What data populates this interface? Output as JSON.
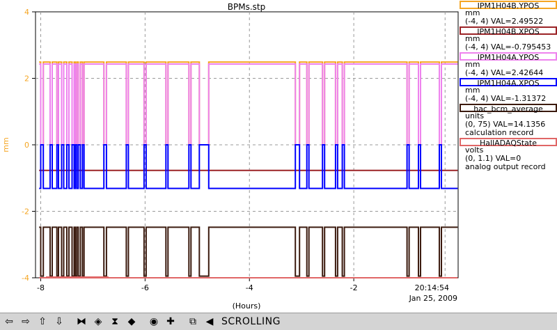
{
  "title": "BPMs.stp",
  "ylabel": "mm",
  "xlabel": "(Hours)",
  "time_label": "20:14:54",
  "date_label": "Jan 25, 2009",
  "status": "SCROLLING",
  "chart_data": {
    "type": "line",
    "title": "BPMs.stp",
    "xlabel": "(Hours)",
    "ylabel": "mm",
    "xlim": [
      -8.1,
      0
    ],
    "ylim": [
      -4,
      4
    ],
    "xticks": [
      -8,
      -6,
      -4,
      -2
    ],
    "yticks": [
      4,
      2,
      0,
      -2,
      -4
    ],
    "grid": true,
    "legend_position": "right",
    "beam_off_intervals": [
      [
        -8.0,
        -7.95
      ],
      [
        -7.82,
        -7.78
      ],
      [
        -7.69,
        -7.66
      ],
      [
        -7.6,
        -7.56
      ],
      [
        -7.5,
        -7.46
      ],
      [
        -7.4,
        -7.36
      ],
      [
        -7.34,
        -7.31
      ],
      [
        -7.28,
        -7.24
      ],
      [
        -7.2,
        -7.17
      ],
      [
        -6.79,
        -6.74
      ],
      [
        -6.36,
        -6.32
      ],
      [
        -6.02,
        -5.98
      ],
      [
        -5.6,
        -5.56
      ],
      [
        -5.16,
        -5.12
      ],
      [
        -4.96,
        -4.78
      ],
      [
        -2.22,
        -2.18
      ],
      [
        -3.12,
        -3.04
      ],
      [
        -2.9,
        -2.86
      ],
      [
        -2.6,
        -2.56
      ],
      [
        -2.35,
        -2.31
      ],
      [
        -0.98,
        -0.94
      ],
      [
        -0.76,
        -0.72
      ],
      [
        -0.36,
        -0.32
      ]
    ],
    "series": [
      {
        "name": "IPM1H04B.YPOS",
        "unit": "mm",
        "range": "(-4, 4)",
        "value": "2.49522",
        "color": "#f5a623",
        "beam_on_level": 2.49,
        "beam_off_level": 0.0
      },
      {
        "name": "IPM1H04B.XPOS",
        "unit": "mm",
        "range": "(-4, 4)",
        "value": "-0.795453",
        "color": "#9b2226",
        "beam_on_level": -0.77,
        "beam_off_level": -0.77
      },
      {
        "name": "IPM1H04A.YPOS",
        "unit": "mm",
        "range": "(-4, 4)",
        "value": "2.42644",
        "color": "#ee82ee",
        "beam_on_level": 2.43,
        "beam_off_level": 0.0
      },
      {
        "name": "IPM1H04A.XPOS",
        "unit": "mm",
        "range": "(-4, 4)",
        "value": "-1.31372",
        "color": "#0000ff",
        "beam_on_level": -1.31,
        "beam_off_level": 0.0
      },
      {
        "name": "hac_bcm_average",
        "unit": "units",
        "range": "(0, 75)",
        "value": "14.1356",
        "note": "calculation record",
        "color": "#3b1a0e",
        "beam_on_level": -2.48,
        "beam_off_level": -3.95
      },
      {
        "name": "HallADAQState",
        "unit": "volts",
        "range": "(0, 1.1)",
        "value": "0",
        "note": "analog output record",
        "color": "#e06666",
        "beam_on_level": -4.0,
        "beam_off_level": -4.0
      }
    ]
  },
  "legend": [
    {
      "name": "IPM1H04B.YPOS",
      "color": "#f5a623",
      "unit": "mm",
      "info": "(-4, 4) VAL=2.49522"
    },
    {
      "name": "IPM1H04B.XPOS",
      "color": "#9b2226",
      "unit": "mm",
      "info": "(-4, 4) VAL=-0.795453"
    },
    {
      "name": "IPM1H04A.YPOS",
      "color": "#ee82ee",
      "unit": "mm",
      "info": "(-4, 4) VAL=2.42644"
    },
    {
      "name": "IPM1H04A.XPOS",
      "color": "#0000ff",
      "unit": "mm",
      "info": "(-4, 4) VAL=-1.31372"
    },
    {
      "name": "hac_bcm_average",
      "color": "#3b1a0e",
      "unit": "units",
      "info": "(0, 75) VAL=14.1356",
      "extra": "calculation record"
    },
    {
      "name": "HallADAQState",
      "color": "#e06666",
      "unit": "volts",
      "info": "(0, 1.1) VAL=0",
      "extra": "analog output record"
    }
  ],
  "toolbar": [
    {
      "name": "scroll-left-button",
      "glyph": "⇦"
    },
    {
      "name": "scroll-right-button",
      "glyph": "⇨"
    },
    {
      "name": "scroll-up-button",
      "glyph": "⇧"
    },
    {
      "name": "scroll-down-button",
      "glyph": "⇩"
    },
    {
      "name": "zoom-in-x-button",
      "glyph": "⧓"
    },
    {
      "name": "zoom-out-x-button",
      "glyph": "◈"
    },
    {
      "name": "zoom-in-y-button",
      "glyph": "⧗"
    },
    {
      "name": "zoom-out-y-button",
      "glyph": "◆"
    },
    {
      "name": "reset-button",
      "glyph": "◉"
    },
    {
      "name": "crosshair-button",
      "glyph": "✚"
    },
    {
      "name": "autoscale-button",
      "glyph": "⧉"
    },
    {
      "name": "scroll-mode-button",
      "glyph": "◀"
    }
  ]
}
